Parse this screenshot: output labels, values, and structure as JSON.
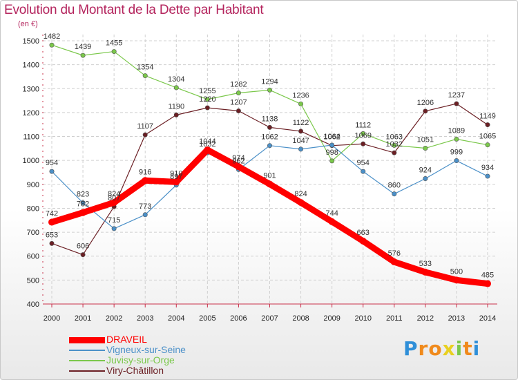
{
  "chart_data": {
    "type": "line",
    "title": "Evolution du Montant de la Dette par Habitant",
    "subtitle": "(en €)",
    "xlabel": "",
    "ylabel": "",
    "x": [
      "2000",
      "2001",
      "2002",
      "2003",
      "2004",
      "2005",
      "2006",
      "2007",
      "2008",
      "2009",
      "2010",
      "2011",
      "2012",
      "2013",
      "2014"
    ],
    "ylim": [
      400,
      1500
    ],
    "yticks": [
      400,
      500,
      600,
      700,
      800,
      900,
      1000,
      1100,
      1200,
      1300,
      1400,
      1500
    ],
    "grid": true,
    "legend": "bottom-left",
    "series": [
      {
        "name": "DRAVEIL",
        "color": "#ff0000",
        "values": [
          742,
          782,
          824,
          916,
          910,
          1044,
          974,
          901,
          824,
          744,
          663,
          576,
          533,
          500,
          485
        ]
      },
      {
        "name": "Vigneux-sur-Seine",
        "color": "#4b90c8",
        "values": [
          954,
          823,
          715,
          773,
          897,
          1032,
          962,
          1062,
          1047,
          1064,
          954,
          860,
          924,
          999,
          934
        ]
      },
      {
        "name": "Juvisy-sur-Orge",
        "color": "#7bc84b",
        "values": [
          1482,
          1439,
          1455,
          1354,
          1304,
          1255,
          1282,
          1294,
          1236,
          998,
          1112,
          1063,
          1051,
          1089,
          1065
        ]
      },
      {
        "name": "Viry-Châtillon",
        "color": "#6b1f24",
        "values": [
          653,
          606,
          807,
          1107,
          1190,
          1220,
          1207,
          1138,
          1122,
          1062,
          1069,
          1032,
          1206,
          1237,
          1149
        ]
      }
    ]
  },
  "brand": {
    "logo_letters": [
      "P",
      "r",
      "o",
      "x",
      "i",
      "t",
      "i"
    ],
    "logo_colors": [
      "#2f8fd8",
      "#f08a1c",
      "#f08a1c",
      "#e8d020",
      "#7bc84b",
      "#f08a1c",
      "#2f8fd8"
    ]
  }
}
